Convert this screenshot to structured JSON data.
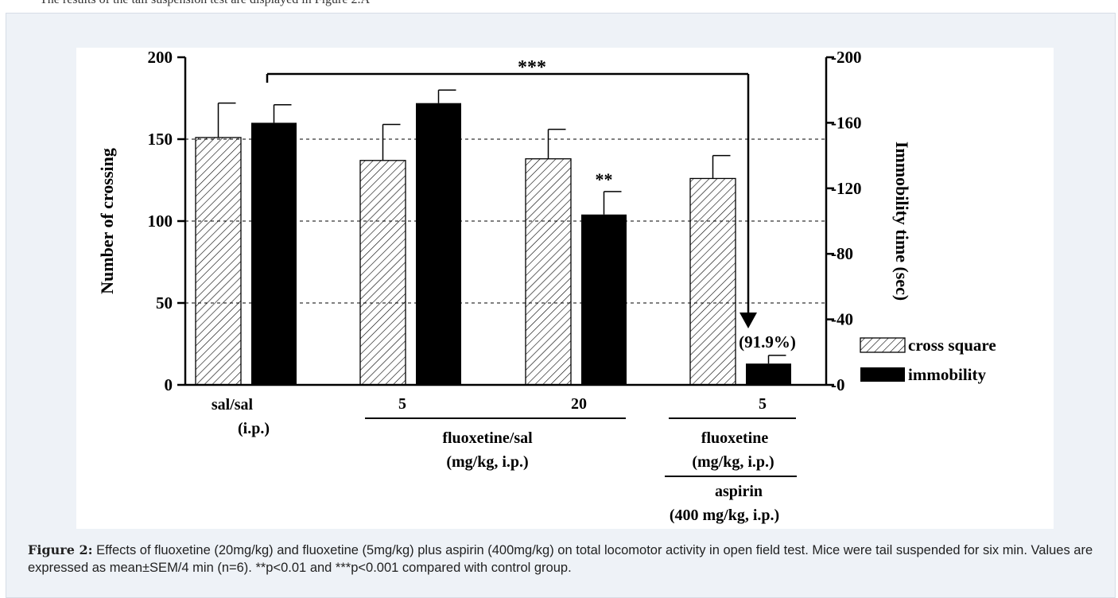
{
  "top_text": "The results of the tail suspension test are displayed in Figure 2.A",
  "caption": {
    "label": "Figure 2:",
    "text": " Effects of fluoxetine (20mg/kg) and fluoxetine (5mg/kg) plus aspirin (400mg/kg) on total locomotor activity in open field test.  Mice were tail suspended for six min. Values are expressed as mean±SEM/4 min (n=6). **p<0.01 and ***p<0.001 compared with control group."
  },
  "chart_data": {
    "type": "bar",
    "ylabel": "Number of crossing",
    "y2label": "Immobility time (sec)",
    "ylim": [
      0,
      200
    ],
    "yticks": [
      0,
      50,
      100,
      150,
      200
    ],
    "y2lim": [
      0,
      200
    ],
    "y2ticks": [
      0,
      40,
      80,
      120,
      160,
      200
    ],
    "grid": "dashed horizontal at 50, 100, 150",
    "legend_position": "bottom-right",
    "groups": [
      {
        "cross": 151,
        "cross_err": 21,
        "immob": 160,
        "immob_err": 11,
        "star": ""
      },
      {
        "cross": 137,
        "cross_err": 22,
        "immob": 172,
        "immob_err": 8,
        "star": ""
      },
      {
        "cross": 138,
        "cross_err": 18,
        "immob": 104,
        "immob_err": 14,
        "star": "**"
      },
      {
        "cross": 126,
        "cross_err": 14,
        "immob": 13,
        "immob_err": 5,
        "star": ""
      }
    ],
    "series": [
      {
        "name": "cross square",
        "pattern": "hatched"
      },
      {
        "name": "immobility",
        "color": "#000000"
      }
    ],
    "x_labels": {
      "sal_sal": "sal/sal",
      "sal_ip": "(i.p.)",
      "dose_5": "5",
      "dose_20": "20",
      "fluox_sal": "fluoxetine/sal",
      "mgkg_ip_1": "(mg/kg, i.p.)",
      "dose_5b": "5",
      "fluoxetine": "fluoxetine",
      "mgkg_ip_2": "(mg/kg, i.p.)",
      "aspirin": "aspirin",
      "aspirin_dose": "(400 mg/kg, i.p.)"
    },
    "annotations": {
      "triple_star": "***",
      "percent": "(91.9%)"
    }
  }
}
